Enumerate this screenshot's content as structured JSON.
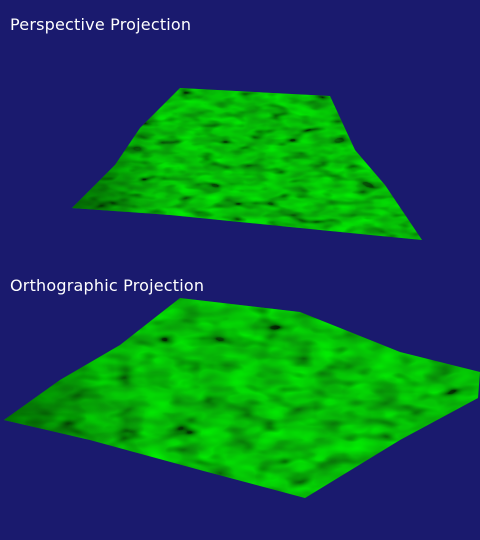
{
  "views": [
    {
      "label": "Perspective Projection"
    },
    {
      "label": "Orthographic Projection"
    }
  ],
  "colors": {
    "background": "#1a1a6e",
    "label": "#ffffff",
    "terrain_light": "#22ff22",
    "terrain_mid": "#0a9a0a",
    "terrain_dark": "#021a02"
  }
}
